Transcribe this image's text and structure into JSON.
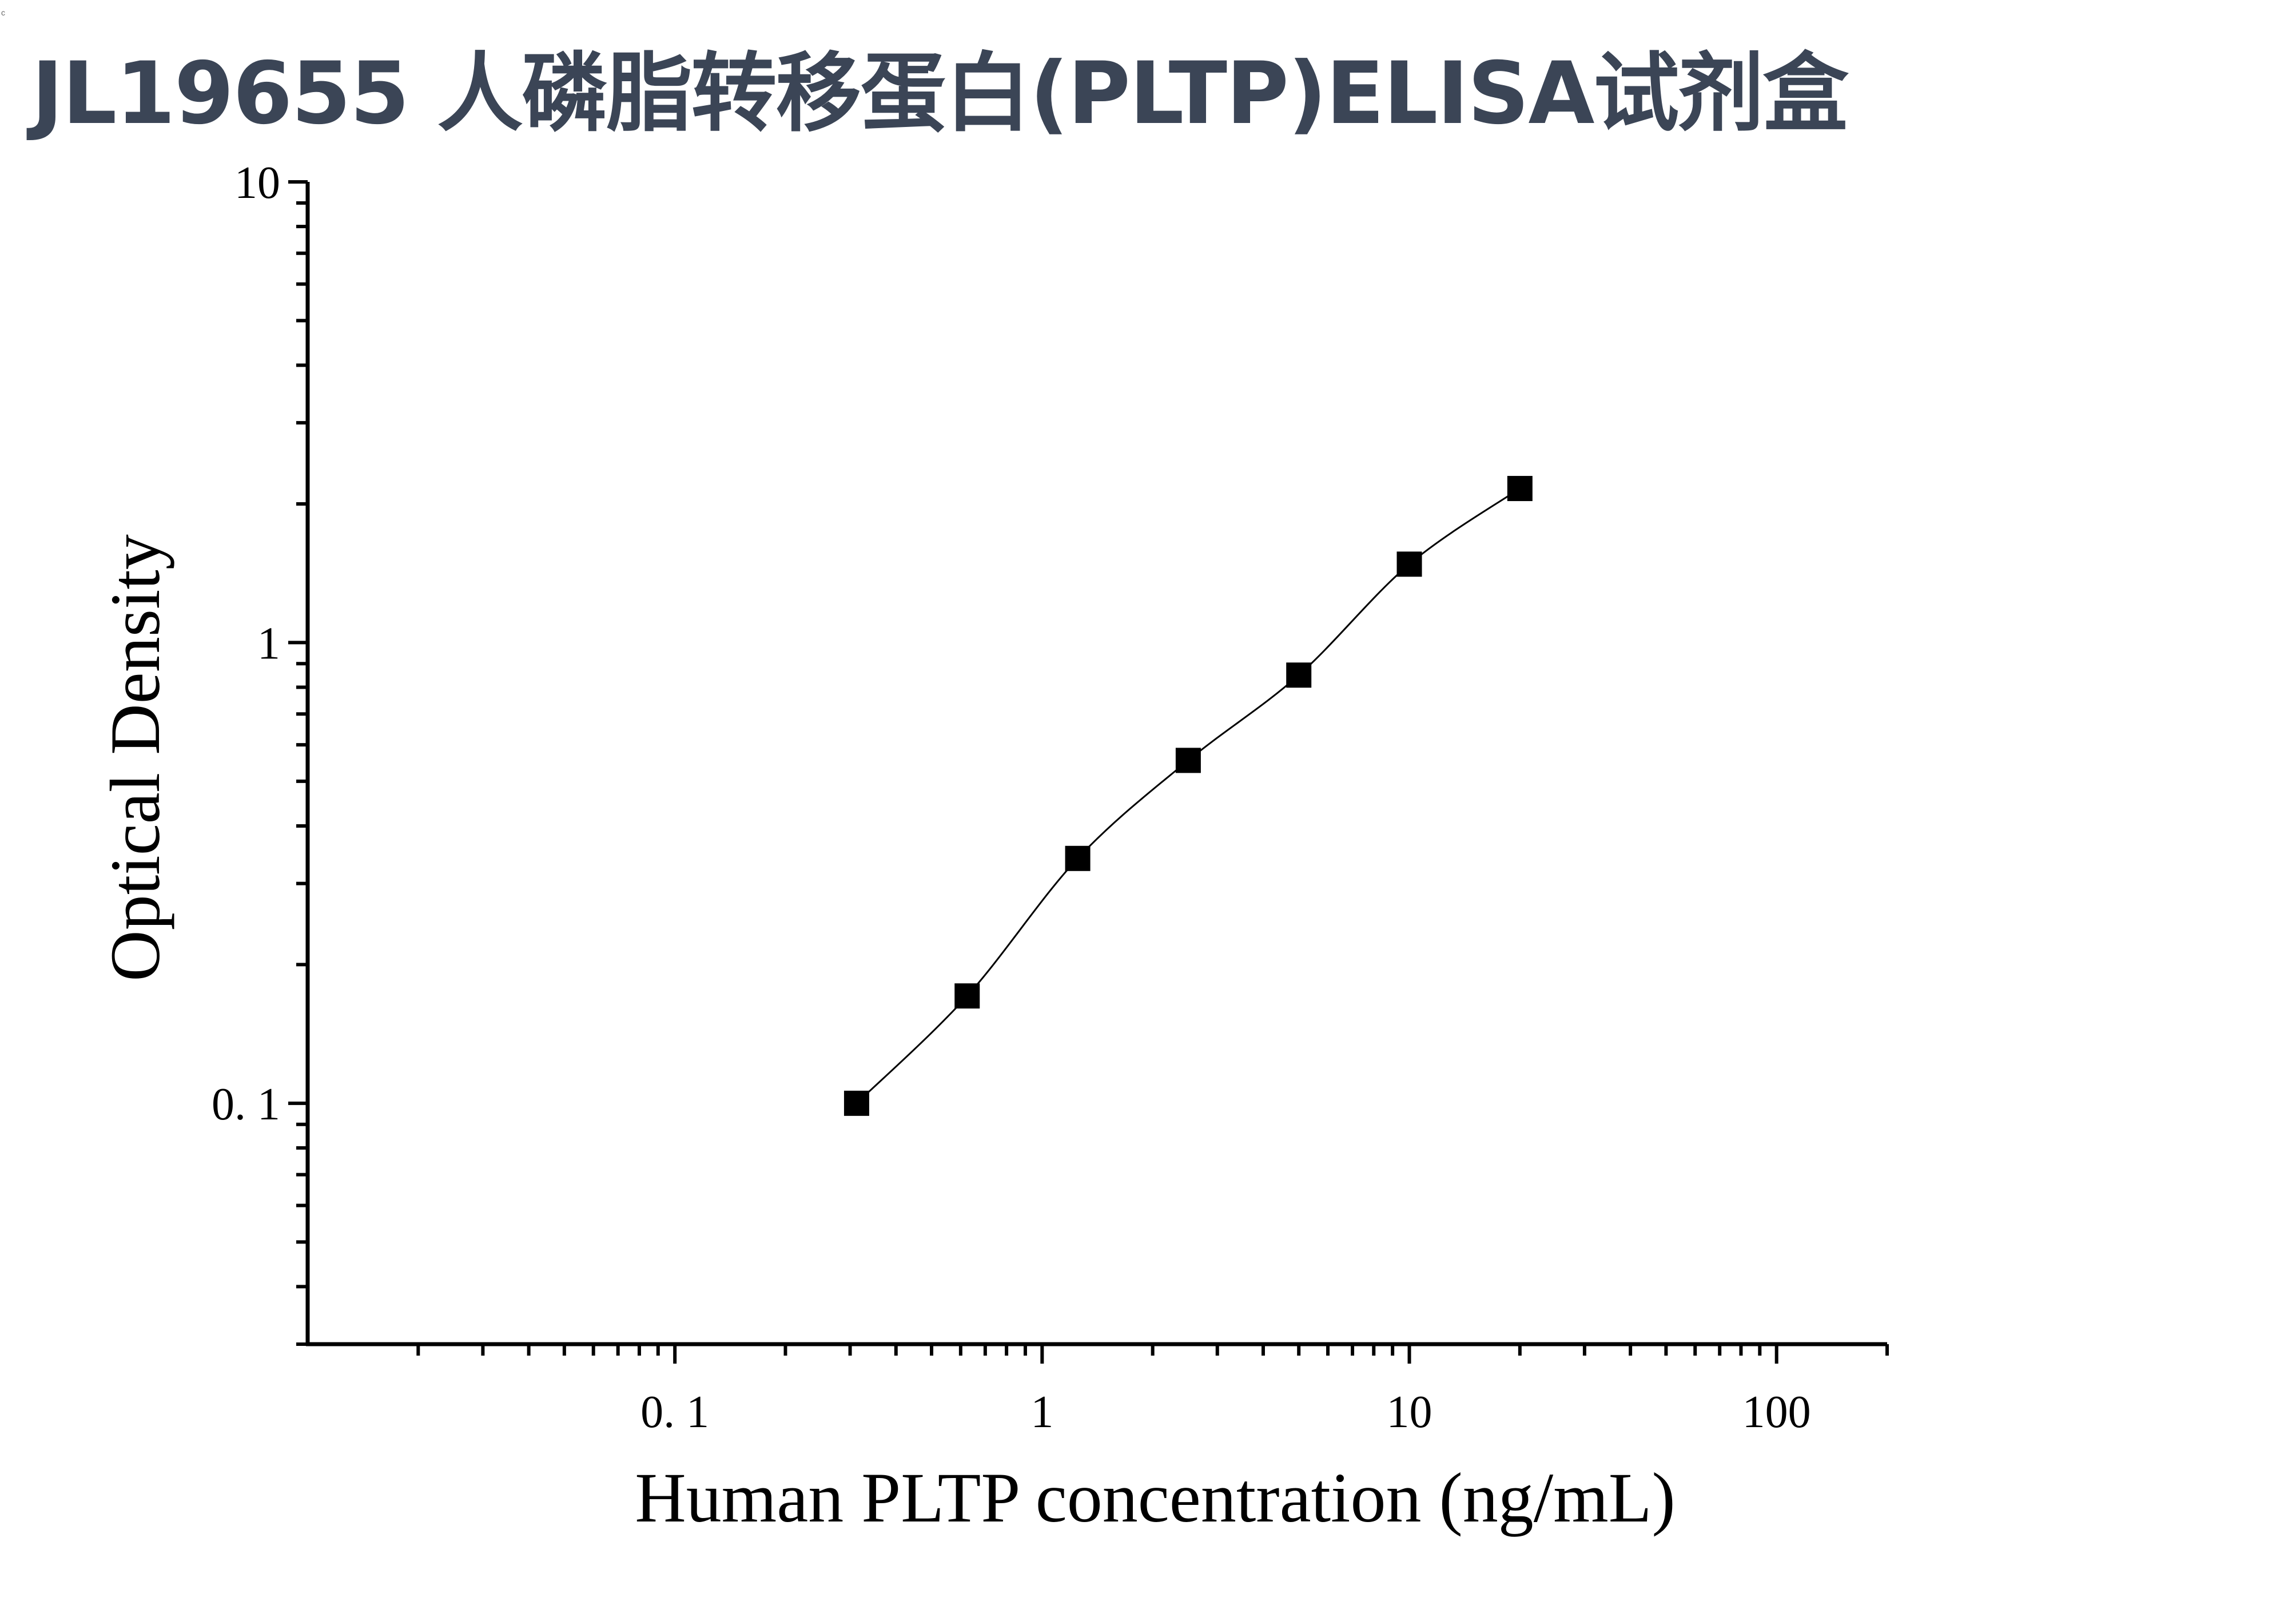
{
  "header": {
    "title": "JL19655 人磷脂转移蛋白(PLTP)ELISA试剂盒",
    "corner_mark": "c"
  },
  "chart_data": {
    "type": "scatter",
    "title": "JL19655 人磷脂转移蛋白(PLTP)ELISA试剂盒",
    "xlabel": "Human PLTP concentration (ng/mL)",
    "ylabel": "Optical Density",
    "xscale": "log",
    "yscale": "log",
    "xlim": [
      0.01,
      200
    ],
    "ylim": [
      0.03,
      10
    ],
    "x_ticks": [
      {
        "value": 0.1,
        "label": "0. 1"
      },
      {
        "value": 1,
        "label": "1"
      },
      {
        "value": 10,
        "label": "10"
      },
      {
        "value": 100,
        "label": "100"
      }
    ],
    "y_ticks": [
      {
        "value": 0.1,
        "label": "0. 1"
      },
      {
        "value": 1,
        "label": "1"
      },
      {
        "value": 10,
        "label": "10"
      }
    ],
    "grid": false,
    "legend": "none",
    "marker": "square",
    "series": [
      {
        "x": [
          0.3125,
          0.625,
          1.25,
          2.5,
          5,
          10,
          20
        ],
        "y": [
          0.1,
          0.171,
          0.34,
          0.555,
          0.85,
          1.48,
          2.16
        ],
        "color": "#000000",
        "fit_line": true
      }
    ]
  }
}
